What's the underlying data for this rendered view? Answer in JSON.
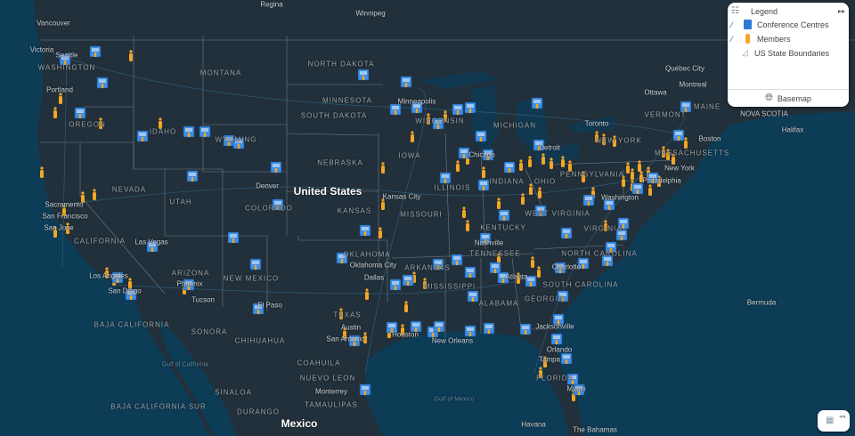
{
  "map": {
    "country_labels": [
      "United States",
      "Mexico"
    ],
    "state_labels": [
      "WASHINGTON",
      "MONTANA",
      "NORTH DAKOTA",
      "MINNESOTA",
      "OREGON",
      "IDAHO",
      "WYOMING",
      "SOUTH DAKOTA",
      "NEBRASKA",
      "IOWA",
      "NEVADA",
      "UTAH",
      "COLORADO",
      "KANSAS",
      "MISSOURI",
      "ILLINOIS",
      "INDIANA",
      "OHIO",
      "MICHIGAN",
      "WISCONSIN",
      "CALIFORNIA",
      "ARIZONA",
      "NEW MEXICO",
      "OKLAHOMA",
      "TEXAS",
      "ARKANSAS",
      "MISSISSIPPI",
      "ALABAMA",
      "GEORGIA",
      "TENNESSEE",
      "KENTUCKY",
      "WEST VIRGINIA",
      "VIRGINIA",
      "NORTH CAROLINA",
      "SOUTH CAROLINA",
      "PENNSYLVANIA",
      "NEW YORK",
      "FLORIDA",
      "MAINE",
      "VERMONT",
      "MASSACHUSETTS",
      "SONORA",
      "CHIHUAHUA",
      "COAHUILA",
      "NUEVO LEON",
      "TAMAULIPAS",
      "BAJA CALIFORNIA",
      "BAJA CALIFORNIA SUR",
      "SINALOA",
      "DURANGO"
    ],
    "city_labels": [
      "Regina",
      "Winnipeg",
      "Vancouver",
      "Victoria",
      "Seattle",
      "Portland",
      "Sacramento",
      "San Francisco",
      "San Jose",
      "Las Vegas",
      "Los Angeles",
      "San Diego",
      "Phoenix",
      "Tucson",
      "El Paso",
      "Denver",
      "Kansas City",
      "Minneapolis",
      "Chicago",
      "Detroit",
      "Toronto",
      "Ottawa",
      "Montreal",
      "Québec City",
      "Boston",
      "New York",
      "Philadelphia",
      "Washington",
      "Nashville",
      "Atlanta",
      "Charlotte",
      "Jacksonville",
      "Orlando",
      "Tampa",
      "Miami",
      "Houston",
      "Austin",
      "San Antonio",
      "Dallas",
      "New Orleans",
      "Oklahoma City",
      "Monterrey",
      "Havana",
      "Bermuda",
      "The Bahamas",
      "Gulf of Mexico",
      "Gulf of California",
      "Halifax",
      "NOVA SCOTIA"
    ]
  },
  "legend": {
    "title": "Legend",
    "layers": [
      {
        "label": "Conference Centres",
        "icon": "conference-centre-icon",
        "visible": true
      },
      {
        "label": "Members",
        "icon": "member-icon",
        "visible": true
      },
      {
        "label": "US State Boundaries",
        "icon": "boundary-icon",
        "visible": true
      }
    ],
    "basemap_label": "Basemap"
  },
  "colors": {
    "ocean": "#0d3c57",
    "land": "#22303b",
    "member": "#f5a623",
    "conference": "#3d8ee6"
  }
}
